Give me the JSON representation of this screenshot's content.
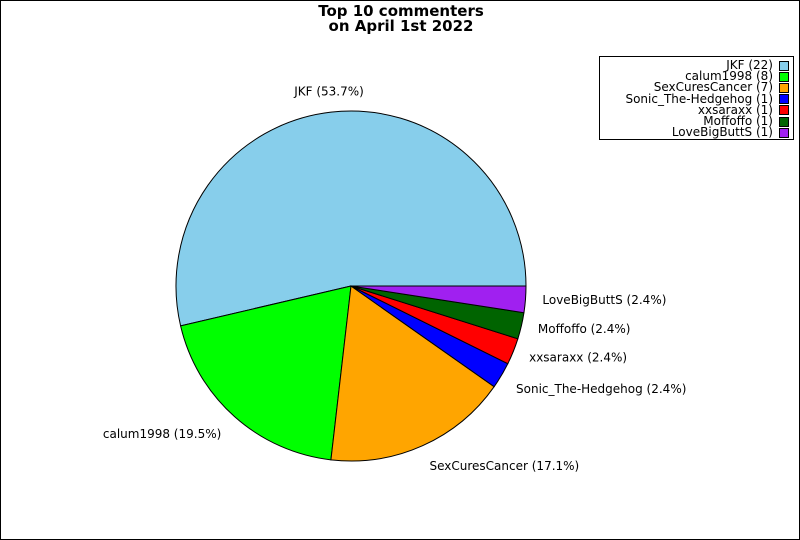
{
  "chart_data": {
    "type": "pie",
    "title_lines": [
      "Top 10 commenters",
      "on April 1st 2022"
    ],
    "slices": [
      {
        "name": "JKF",
        "value": 22,
        "percent_label": "JKF (53.7%)",
        "legend_label": "JKF (22)",
        "color": "#87ceeb"
      },
      {
        "name": "calum1998",
        "value": 8,
        "percent_label": "calum1998 (19.5%)",
        "legend_label": "calum1998 (8)",
        "color": "#00ff00"
      },
      {
        "name": "SexCuresCancer",
        "value": 7,
        "percent_label": "SexCuresCancer (17.1%)",
        "legend_label": "SexCuresCancer (7)",
        "color": "#ffa500"
      },
      {
        "name": "Sonic_The-Hedgehog",
        "value": 1,
        "percent_label": "Sonic_The-Hedgehog (2.4%)",
        "legend_label": "Sonic_The-Hedgehog (1)",
        "color": "#0000ff"
      },
      {
        "name": "xxsaraxx",
        "value": 1,
        "percent_label": "xxsaraxx (2.4%)",
        "legend_label": "xxsaraxx (1)",
        "color": "#ff0000"
      },
      {
        "name": "Moffoffo",
        "value": 1,
        "percent_label": "Moffoffo (2.4%)",
        "legend_label": "Moffoffo (1)",
        "color": "#006400"
      },
      {
        "name": "LoveBigButtS",
        "value": 1,
        "percent_label": "LoveBigButtS (2.4%)",
        "legend_label": "LoveBigButtS (1)",
        "color": "#a020f0"
      }
    ],
    "legend_placement": "top-right"
  }
}
